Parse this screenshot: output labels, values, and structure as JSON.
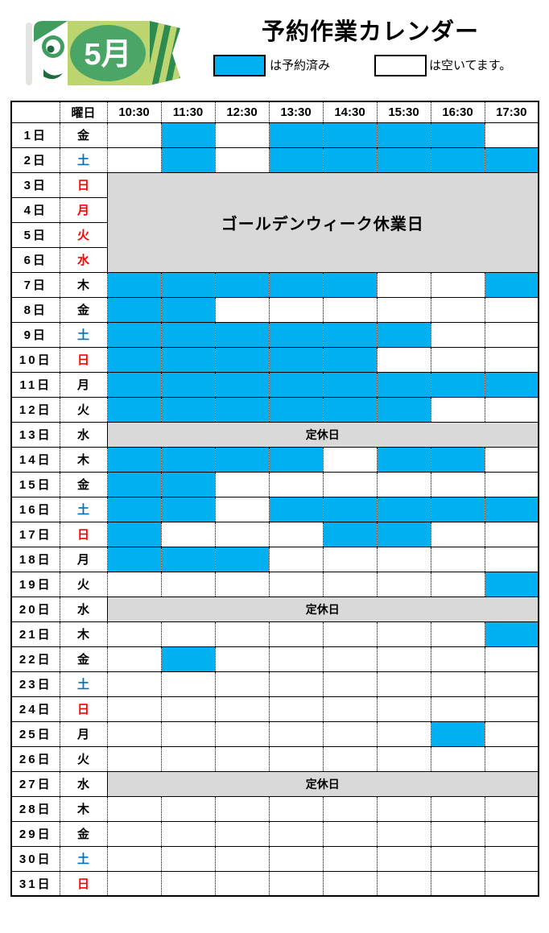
{
  "header": {
    "title": "予約作業カレンダー",
    "month_badge": "5月",
    "legend": [
      {
        "label": "は予約済み",
        "swatch": "reserved",
        "color": "#00B0F0"
      },
      {
        "label": "は空いてます。",
        "swatch": "available",
        "color": "#FFFFFF"
      }
    ]
  },
  "table": {
    "day_of_week_header": "曜日",
    "time_slots": [
      "10:30",
      "11:30",
      "12:30",
      "13:30",
      "14:30",
      "15:30",
      "16:30",
      "17:30"
    ],
    "special_labels": {
      "golden_week": "ゴールデンウィーク休業日",
      "regular_holiday": "定休日"
    },
    "colors": {
      "reserved": "#00B0F0",
      "closed_bg": "#D9D9D9",
      "saturday_text": "#0070C0",
      "holiday_text": "#FF0000",
      "weekday_text": "#000000"
    },
    "rows": [
      {
        "day": "1日",
        "weekday": "金",
        "weekday_color": "black",
        "type": "normal",
        "slots": [
          0,
          1,
          0,
          1,
          1,
          1,
          1,
          0
        ]
      },
      {
        "day": "2日",
        "weekday": "土",
        "weekday_color": "blue",
        "type": "normal",
        "slots": [
          0,
          1,
          0,
          1,
          1,
          1,
          1,
          1
        ]
      },
      {
        "day": "3日",
        "weekday": "日",
        "weekday_color": "red",
        "type": "golden_week_start"
      },
      {
        "day": "4日",
        "weekday": "月",
        "weekday_color": "red",
        "type": "golden_week"
      },
      {
        "day": "5日",
        "weekday": "火",
        "weekday_color": "red",
        "type": "golden_week"
      },
      {
        "day": "6日",
        "weekday": "水",
        "weekday_color": "red",
        "type": "golden_week"
      },
      {
        "day": "7日",
        "weekday": "木",
        "weekday_color": "black",
        "type": "normal",
        "slots": [
          1,
          1,
          1,
          1,
          1,
          0,
          0,
          1
        ]
      },
      {
        "day": "8日",
        "weekday": "金",
        "weekday_color": "black",
        "type": "normal",
        "slots": [
          1,
          1,
          0,
          0,
          0,
          0,
          0,
          0
        ]
      },
      {
        "day": "9日",
        "weekday": "土",
        "weekday_color": "blue",
        "type": "normal",
        "slots": [
          1,
          1,
          1,
          1,
          1,
          1,
          0,
          0
        ]
      },
      {
        "day": "10日",
        "weekday": "日",
        "weekday_color": "red",
        "type": "normal",
        "slots": [
          1,
          1,
          1,
          1,
          1,
          0,
          0,
          0
        ]
      },
      {
        "day": "11日",
        "weekday": "月",
        "weekday_color": "black",
        "type": "normal",
        "slots": [
          1,
          1,
          1,
          1,
          1,
          1,
          1,
          1
        ]
      },
      {
        "day": "12日",
        "weekday": "火",
        "weekday_color": "black",
        "type": "normal",
        "slots": [
          1,
          1,
          1,
          1,
          1,
          1,
          0,
          0
        ]
      },
      {
        "day": "13日",
        "weekday": "水",
        "weekday_color": "black",
        "type": "regular_holiday"
      },
      {
        "day": "14日",
        "weekday": "木",
        "weekday_color": "black",
        "type": "normal",
        "slots": [
          1,
          1,
          1,
          1,
          0,
          1,
          1,
          0
        ]
      },
      {
        "day": "15日",
        "weekday": "金",
        "weekday_color": "black",
        "type": "normal",
        "slots": [
          1,
          1,
          0,
          0,
          0,
          0,
          0,
          0
        ]
      },
      {
        "day": "16日",
        "weekday": "土",
        "weekday_color": "blue",
        "type": "normal",
        "slots": [
          1,
          1,
          0,
          1,
          1,
          1,
          1,
          1
        ]
      },
      {
        "day": "17日",
        "weekday": "日",
        "weekday_color": "red",
        "type": "normal",
        "slots": [
          1,
          0,
          0,
          0,
          1,
          1,
          0,
          0
        ]
      },
      {
        "day": "18日",
        "weekday": "月",
        "weekday_color": "black",
        "type": "normal",
        "slots": [
          1,
          1,
          1,
          0,
          0,
          0,
          0,
          0
        ]
      },
      {
        "day": "19日",
        "weekday": "火",
        "weekday_color": "black",
        "type": "normal",
        "slots": [
          0,
          0,
          0,
          0,
          0,
          0,
          0,
          1
        ]
      },
      {
        "day": "20日",
        "weekday": "水",
        "weekday_color": "black",
        "type": "regular_holiday"
      },
      {
        "day": "21日",
        "weekday": "木",
        "weekday_color": "black",
        "type": "normal",
        "slots": [
          0,
          0,
          0,
          0,
          0,
          0,
          0,
          1
        ]
      },
      {
        "day": "22日",
        "weekday": "金",
        "weekday_color": "black",
        "type": "normal",
        "slots": [
          0,
          1,
          0,
          0,
          0,
          0,
          0,
          0
        ]
      },
      {
        "day": "23日",
        "weekday": "土",
        "weekday_color": "blue",
        "type": "normal",
        "slots": [
          0,
          0,
          0,
          0,
          0,
          0,
          0,
          0
        ]
      },
      {
        "day": "24日",
        "weekday": "日",
        "weekday_color": "red",
        "type": "normal",
        "slots": [
          0,
          0,
          0,
          0,
          0,
          0,
          0,
          0
        ]
      },
      {
        "day": "25日",
        "weekday": "月",
        "weekday_color": "black",
        "type": "normal",
        "slots": [
          0,
          0,
          0,
          0,
          0,
          0,
          1,
          0
        ]
      },
      {
        "day": "26日",
        "weekday": "火",
        "weekday_color": "black",
        "type": "normal",
        "slots": [
          0,
          0,
          0,
          0,
          0,
          0,
          0,
          0
        ]
      },
      {
        "day": "27日",
        "weekday": "水",
        "weekday_color": "black",
        "type": "regular_holiday"
      },
      {
        "day": "28日",
        "weekday": "木",
        "weekday_color": "black",
        "type": "normal",
        "slots": [
          0,
          0,
          0,
          0,
          0,
          0,
          0,
          0
        ]
      },
      {
        "day": "29日",
        "weekday": "金",
        "weekday_color": "black",
        "type": "normal",
        "slots": [
          0,
          0,
          0,
          0,
          0,
          0,
          0,
          0
        ]
      },
      {
        "day": "30日",
        "weekday": "土",
        "weekday_color": "blue",
        "type": "normal",
        "slots": [
          0,
          0,
          0,
          0,
          0,
          0,
          0,
          0
        ]
      },
      {
        "day": "31日",
        "weekday": "日",
        "weekday_color": "red",
        "type": "normal",
        "slots": [
          0,
          0,
          0,
          0,
          0,
          0,
          0,
          0
        ]
      }
    ]
  }
}
